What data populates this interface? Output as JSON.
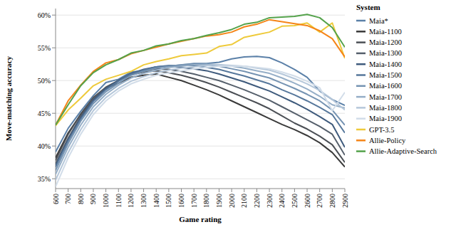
{
  "chart_data": {
    "type": "line",
    "x_label": "Game rating",
    "y_label": "Move-matching accuracy",
    "legend_title": "System",
    "legend": "right",
    "grid": true,
    "x": [
      600,
      700,
      800,
      900,
      1000,
      1100,
      1200,
      1300,
      1400,
      1500,
      1600,
      1700,
      1800,
      1900,
      2000,
      2100,
      2200,
      2300,
      2400,
      2500,
      2600,
      2700,
      2800,
      2900
    ],
    "xlim": [
      600,
      2900
    ],
    "xticks": [
      600,
      700,
      800,
      900,
      1000,
      1100,
      1200,
      1300,
      1400,
      1500,
      1600,
      1700,
      1800,
      1900,
      2000,
      2100,
      2200,
      2300,
      2400,
      2500,
      2600,
      2700,
      2800,
      2900
    ],
    "ylim": [
      33.5,
      61
    ],
    "yticks": [
      {
        "value": 35,
        "label": "35%"
      },
      {
        "value": 40,
        "label": "40%"
      },
      {
        "value": 45,
        "label": "45%"
      },
      {
        "value": 50,
        "label": "50%"
      },
      {
        "value": 55,
        "label": "55%"
      },
      {
        "value": 60,
        "label": "60%"
      }
    ],
    "series": [
      {
        "name": "Maia*",
        "color": "#5b80a8",
        "values": [
          39.1,
          42.7,
          45.3,
          47.7,
          49.7,
          50.2,
          51.3,
          51.5,
          52.1,
          52.2,
          52.4,
          52.6,
          52.6,
          52.8,
          53.3,
          53.6,
          53.7,
          53.5,
          52.7,
          51.7,
          50.5,
          48.4,
          47.1,
          46.2
        ]
      },
      {
        "name": "Maia-1100",
        "color": "#3a3a3a",
        "values": [
          38.2,
          42.0,
          44.8,
          47.2,
          48.8,
          49.6,
          50.5,
          50.8,
          51.0,
          50.5,
          50.0,
          49.3,
          48.6,
          47.8,
          46.9,
          46.0,
          45.1,
          44.2,
          43.3,
          42.5,
          41.6,
          40.5,
          39.0,
          36.8
        ]
      },
      {
        "name": "Maia-1200",
        "color": "#4b4f55",
        "values": [
          37.8,
          41.8,
          44.9,
          47.4,
          49.0,
          50.0,
          50.9,
          51.3,
          51.5,
          51.2,
          50.8,
          50.3,
          49.7,
          49.0,
          48.2,
          47.4,
          46.6,
          45.7,
          44.6,
          43.5,
          42.6,
          41.5,
          40.2,
          37.5
        ]
      },
      {
        "name": "Maia-1300",
        "color": "#555f6b",
        "values": [
          37.3,
          41.2,
          44.5,
          47.2,
          48.9,
          50.0,
          51.0,
          51.5,
          51.8,
          51.7,
          51.4,
          51.0,
          50.5,
          50.0,
          49.3,
          48.6,
          47.8,
          47.0,
          46.0,
          45.0,
          44.0,
          43.0,
          41.8,
          38.6
        ]
      },
      {
        "name": "Maia-1400",
        "color": "#3e5a7c",
        "values": [
          37.0,
          41.0,
          44.3,
          47.0,
          48.8,
          50.0,
          51.1,
          51.7,
          52.1,
          52.2,
          52.0,
          51.8,
          51.5,
          51.0,
          50.4,
          49.8,
          49.1,
          48.4,
          47.5,
          46.6,
          45.6,
          44.5,
          43.3,
          39.8
        ]
      },
      {
        "name": "Maia-1500",
        "color": "#56779b",
        "values": [
          36.8,
          40.8,
          44.1,
          46.8,
          48.6,
          49.9,
          51.0,
          51.6,
          52.1,
          52.3,
          52.3,
          52.3,
          52.0,
          51.7,
          51.2,
          50.7,
          50.1,
          49.5,
          48.6,
          47.8,
          46.9,
          45.9,
          44.8,
          42.0
        ]
      },
      {
        "name": "Maia-1600",
        "color": "#7593b2",
        "values": [
          36.3,
          40.4,
          43.8,
          46.5,
          48.3,
          49.6,
          50.8,
          51.4,
          51.9,
          52.2,
          52.4,
          52.5,
          52.4,
          52.2,
          51.8,
          51.4,
          50.9,
          50.4,
          49.6,
          48.8,
          47.9,
          46.9,
          45.5,
          43.2
        ]
      },
      {
        "name": "Maia-1700",
        "color": "#95aec7",
        "values": [
          35.7,
          39.8,
          43.2,
          46.0,
          47.9,
          49.3,
          50.4,
          51.1,
          51.6,
          52.0,
          52.2,
          52.4,
          52.5,
          52.4,
          52.2,
          51.9,
          51.5,
          51.1,
          50.4,
          49.6,
          48.7,
          47.6,
          46.3,
          45.8
        ]
      },
      {
        "name": "Maia-1800",
        "color": "#b5c7da",
        "values": [
          34.8,
          39.0,
          42.5,
          45.4,
          47.4,
          48.8,
          49.9,
          50.6,
          51.2,
          51.6,
          51.9,
          52.1,
          52.3,
          52.4,
          52.3,
          52.2,
          51.9,
          51.6,
          51.0,
          50.3,
          49.5,
          48.5,
          47.1,
          45.5
        ]
      },
      {
        "name": "Maia-1900",
        "color": "#d2dde9",
        "values": [
          33.8,
          38.2,
          41.8,
          44.8,
          46.9,
          48.4,
          49.5,
          50.2,
          50.8,
          51.2,
          51.5,
          51.8,
          52.0,
          52.2,
          52.2,
          52.2,
          52.0,
          51.8,
          51.3,
          50.7,
          49.9,
          48.9,
          45.4,
          48.2
        ]
      },
      {
        "name": "GPT-3.5",
        "color": "#eeca3b",
        "values": [
          43.1,
          45.5,
          47.3,
          49.2,
          50.2,
          50.8,
          51.4,
          52.4,
          52.9,
          53.3,
          53.8,
          54.0,
          54.2,
          55.2,
          55.5,
          56.6,
          57.0,
          57.4,
          58.3,
          58.4,
          58.8,
          57.4,
          58.8,
          53.4
        ]
      },
      {
        "name": "Allie-Policy",
        "color": "#f58518",
        "values": [
          43.2,
          46.9,
          49.3,
          51.4,
          52.7,
          53.2,
          54.1,
          54.6,
          55.1,
          55.6,
          56.0,
          56.4,
          56.8,
          57.0,
          57.4,
          58.2,
          58.6,
          59.3,
          59.0,
          58.7,
          58.4,
          57.6,
          56.4,
          53.6
        ]
      },
      {
        "name": "Allie-Adaptive-Search",
        "color": "#54a24b",
        "values": [
          43.2,
          46.3,
          49.2,
          51.2,
          52.4,
          53.2,
          54.2,
          54.6,
          55.3,
          55.6,
          56.1,
          56.4,
          56.9,
          57.3,
          57.8,
          58.6,
          58.9,
          59.6,
          59.7,
          59.8,
          60.1,
          59.6,
          58.1,
          55.1
        ]
      }
    ]
  }
}
